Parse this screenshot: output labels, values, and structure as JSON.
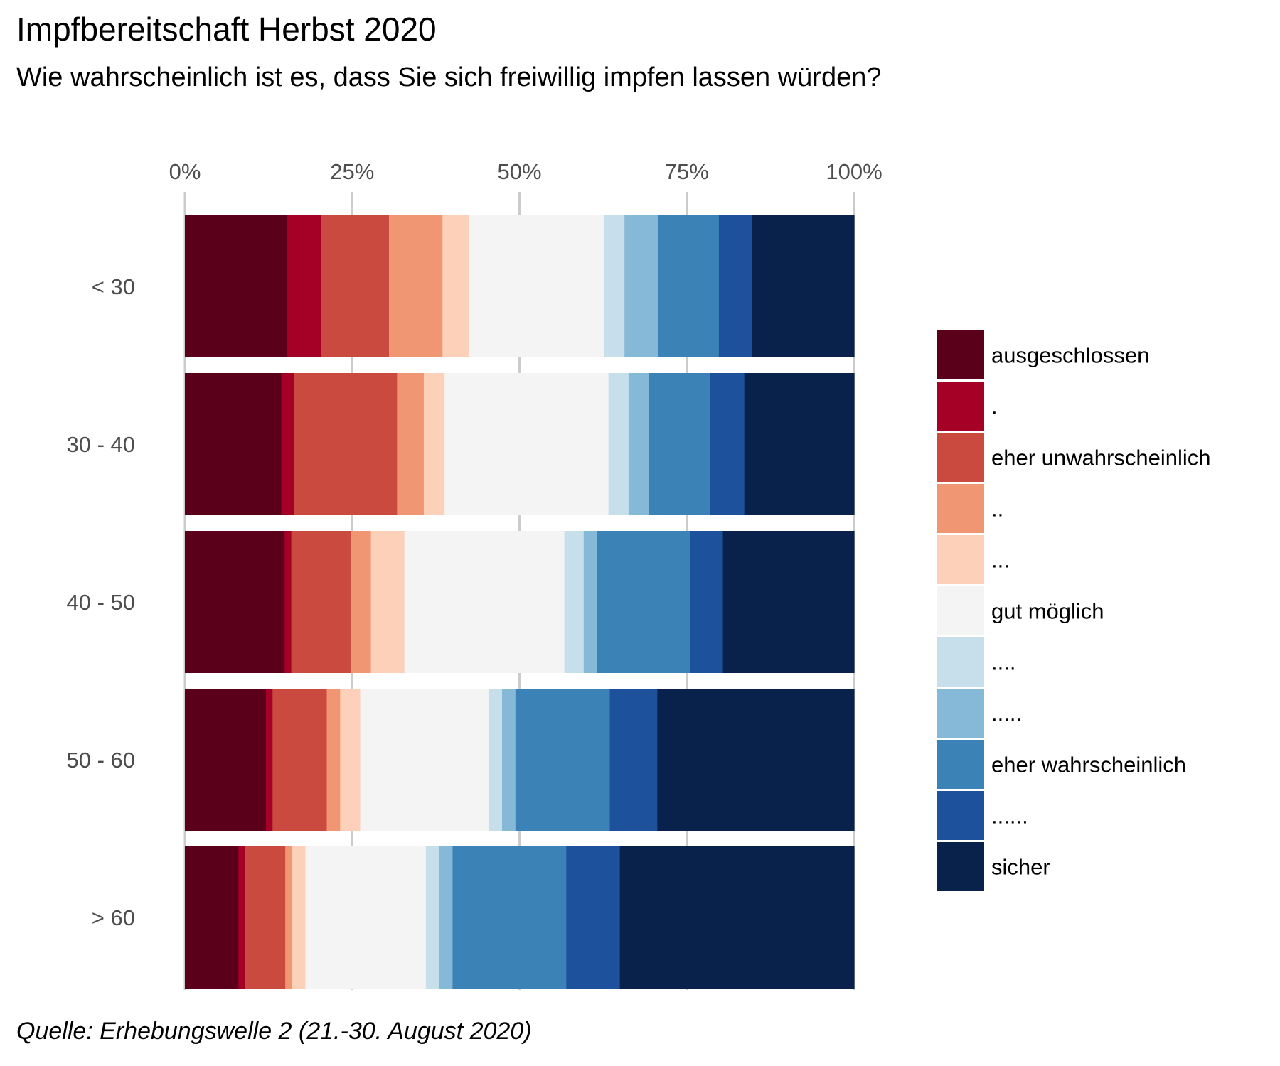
{
  "title": "Impfbereitschaft Herbst 2020",
  "subtitle": "Wie wahrscheinlich ist es, dass Sie sich freiwillig impfen lassen würden?",
  "caption": "Quelle: Erhebungswelle 2 (21.-30. August 2020)",
  "chart_data": {
    "type": "bar",
    "orientation": "horizontal",
    "stacked": true,
    "xlim": [
      0,
      100
    ],
    "xticks": [
      "0%",
      "25%",
      "50%",
      "75%",
      "100%"
    ],
    "x_axis_position": "top",
    "grid": true,
    "legend_position": "right",
    "categories": [
      "< 30",
      "30 - 40",
      "40 - 50",
      "50 - 60",
      "> 60"
    ],
    "series": [
      {
        "name": "ausgeschlossen",
        "color": "#5a001b",
        "values": [
          15.2,
          14.4,
          14.9,
          12.1,
          8.0
        ]
      },
      {
        "name": ".",
        "color": "#a50026",
        "values": [
          5.1,
          1.9,
          1.0,
          1.0,
          1.0
        ]
      },
      {
        "name": "eher unwahrscheinlich",
        "color": "#cb4a3f",
        "values": [
          10.2,
          15.4,
          8.9,
          8.1,
          6.0
        ]
      },
      {
        "name": "..",
        "color": "#f09673",
        "values": [
          8.0,
          4.0,
          3.0,
          2.0,
          1.0
        ]
      },
      {
        "name": "...",
        "color": "#fdd0b9",
        "values": [
          4.0,
          3.1,
          5.0,
          3.0,
          2.0
        ]
      },
      {
        "name": "gut möglich",
        "color": "#f4f4f4",
        "values": [
          20.2,
          24.5,
          23.9,
          19.2,
          18.0
        ]
      },
      {
        "name": "....",
        "color": "#c7dfeb",
        "values": [
          3.0,
          3.0,
          2.9,
          2.0,
          2.0
        ]
      },
      {
        "name": ".....",
        "color": "#86b8d7",
        "values": [
          5.0,
          3.0,
          2.0,
          2.0,
          2.0
        ]
      },
      {
        "name": "eher wahrscheinlich",
        "color": "#3b82b7",
        "values": [
          9.1,
          9.2,
          13.9,
          14.1,
          17.0
        ]
      },
      {
        "name": "......",
        "color": "#1d519b",
        "values": [
          5.0,
          5.1,
          4.9,
          7.1,
          8.0
        ]
      },
      {
        "name": "sicher",
        "color": "#08224c",
        "values": [
          15.2,
          16.4,
          19.6,
          29.4,
          35.0
        ]
      }
    ]
  }
}
